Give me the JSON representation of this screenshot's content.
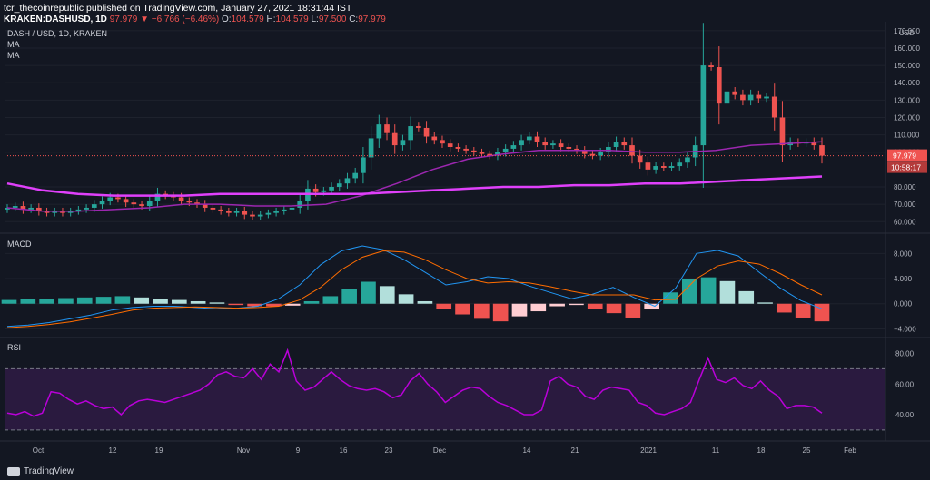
{
  "header": {
    "publisher_line": "tcr_thecoinrepublic published on TradingView.com, January 27, 2021 18:31:44 IST",
    "symbol": "KRAKEN:DASHUSD, 1D",
    "last": "97.979",
    "change": "−6.766 (−6.46%)",
    "o_label": "O:",
    "o": "104.579",
    "h_label": "H:",
    "h": "104.579",
    "l_label": "L:",
    "l": "97.500",
    "c_label": "C:",
    "c": "97.979"
  },
  "overlays": {
    "pair": "DASH / USD, 1D, KRAKEN",
    "ma1": "MA",
    "ma2": "MA",
    "macd": "MACD",
    "rsi": "RSI"
  },
  "price_axis": {
    "unit": "USD",
    "ticks": [
      "170.000",
      "160.000",
      "150.000",
      "140.000",
      "130.000",
      "120.000",
      "110.000",
      "100.000",
      "80.000",
      "70.000",
      "60.000"
    ],
    "current_price": "97.979",
    "countdown": "10:58:17"
  },
  "macd_axis": {
    "ticks": [
      "8.000",
      "4.000",
      "0.000",
      "−4.000"
    ]
  },
  "rsi_axis": {
    "ticks": [
      "80.00",
      "60.00",
      "40.00"
    ]
  },
  "time_axis": {
    "ticks": [
      "Oct",
      "12",
      "19",
      "Nov",
      "9",
      "16",
      "23",
      "Dec",
      "14",
      "21",
      "2021",
      "11",
      "18",
      "25",
      "Feb"
    ]
  },
  "footer": {
    "brand": "TradingView"
  },
  "colors": {
    "background": "#131722",
    "up": "#26a69a",
    "down": "#ef5350",
    "ma_short": "#9c27b0",
    "ma_long": "#e040fb",
    "macd_line": "#2196f3",
    "signal_line": "#ff6d00",
    "rsi_line": "#ba00d9",
    "rsi_band": "#2a1a3f"
  },
  "chart_data": [
    {
      "type": "candlestick",
      "title": "DASH / USD, 1D, KRAKEN",
      "ylabel": "USD",
      "ylim": [
        57,
        172
      ],
      "x_ticks": [
        "Oct",
        "12",
        "19",
        "Nov",
        "9",
        "16",
        "23",
        "Dec",
        "14",
        "21",
        "2021",
        "11",
        "18",
        "25",
        "Feb"
      ],
      "ohlc_close": [
        68,
        69,
        67,
        68,
        66,
        65,
        66,
        65,
        66,
        67,
        68,
        70,
        72,
        74,
        73,
        71,
        70,
        69,
        72,
        76,
        75,
        74,
        72,
        71,
        70,
        68,
        67,
        66,
        65,
        66,
        64,
        63,
        64,
        65,
        66,
        67,
        68,
        72,
        79,
        77,
        78,
        80,
        82,
        85,
        88,
        97,
        108,
        116,
        111,
        104,
        107,
        115,
        114,
        109,
        107,
        105,
        103,
        102,
        101,
        100,
        99,
        98,
        100,
        102,
        104,
        107,
        109,
        106,
        104,
        105,
        103,
        102,
        101,
        99,
        98,
        100,
        103,
        106,
        104,
        98,
        94,
        90,
        92,
        91,
        92,
        94,
        97,
        104,
        150,
        149,
        128,
        135,
        133,
        130,
        133,
        131,
        132,
        120,
        104,
        106,
        105,
        106,
        104,
        98
      ],
      "series": [
        {
          "name": "MA",
          "values": [
            68,
            66,
            66,
            67,
            68,
            70,
            70,
            69,
            69,
            70,
            75,
            82,
            90,
            96,
            99,
            101,
            101,
            101,
            100,
            100,
            101,
            104,
            105,
            106
          ]
        },
        {
          "name": "MA",
          "values": [
            82,
            78,
            76,
            75,
            75,
            75,
            76,
            76,
            76,
            76,
            76,
            77,
            78,
            79,
            80,
            80,
            81,
            81,
            82,
            82,
            83,
            84,
            85,
            86
          ]
        }
      ]
    },
    {
      "type": "bar",
      "title": "MACD",
      "ylim": [
        -4.8,
        10.5
      ],
      "histogram": [
        0.6,
        0.7,
        0.8,
        0.9,
        1.0,
        1.1,
        1.2,
        1.0,
        0.8,
        0.6,
        0.4,
        0.2,
        -0.2,
        -0.4,
        -0.4,
        -0.3,
        0.4,
        1.2,
        2.4,
        3.5,
        2.8,
        1.5,
        0.4,
        -0.8,
        -1.7,
        -2.4,
        -2.8,
        -2.0,
        -1.2,
        -0.4,
        -0.2,
        -0.9,
        -1.5,
        -2.2,
        -0.8,
        1.8,
        4.0,
        4.2,
        3.6,
        2.0,
        0.2,
        -1.4,
        -2.2,
        -2.8
      ],
      "series": [
        {
          "name": "MACD",
          "values": [
            -3.6,
            -3.4,
            -3.0,
            -2.4,
            -1.8,
            -1.0,
            -0.6,
            -0.4,
            -0.4,
            -0.6,
            -0.8,
            -0.7,
            -0.4,
            0.8,
            3.0,
            6.2,
            8.4,
            9.2,
            8.6,
            7.0,
            5.0,
            3.0,
            3.5,
            4.3,
            4.0,
            2.8,
            1.8,
            0.8,
            1.5,
            2.6,
            1.0,
            -0.4,
            2.5,
            8.0,
            8.5,
            7.6,
            5.0,
            2.5,
            0.5,
            -0.8
          ]
        },
        {
          "name": "Signal",
          "values": [
            -3.8,
            -3.6,
            -3.3,
            -2.9,
            -2.3,
            -1.7,
            -1.0,
            -0.7,
            -0.6,
            -0.5,
            -0.6,
            -0.7,
            -0.6,
            -0.4,
            0.6,
            2.6,
            5.4,
            7.4,
            8.4,
            8.2,
            7.0,
            5.4,
            4.0,
            3.3,
            3.5,
            3.3,
            2.7,
            2.0,
            1.4,
            1.4,
            1.4,
            0.6,
            0.7,
            4.0,
            6.0,
            6.8,
            6.3,
            4.8,
            3.0,
            1.4
          ]
        }
      ]
    },
    {
      "type": "line",
      "title": "RSI",
      "ylim": [
        24,
        88
      ],
      "series": [
        {
          "name": "RSI",
          "values": [
            41,
            40,
            42,
            39,
            41,
            55,
            54,
            50,
            47,
            49,
            46,
            44,
            45,
            40,
            46,
            49,
            50,
            49,
            48,
            50,
            52,
            54,
            56,
            60,
            66,
            68,
            65,
            64,
            70,
            63,
            73,
            68,
            82,
            62,
            56,
            58,
            63,
            68,
            63,
            59,
            57,
            56,
            57,
            55,
            51,
            53,
            62,
            67,
            60,
            55,
            48,
            52,
            56,
            58,
            57,
            52,
            48,
            46,
            43,
            40,
            40,
            43,
            62,
            65,
            60,
            58,
            52,
            50,
            56,
            58,
            57,
            56,
            48,
            46,
            41,
            40,
            42,
            44,
            48,
            63,
            77,
            63,
            61,
            64,
            59,
            57,
            62,
            56,
            52,
            44,
            46,
            46,
            45,
            41
          ]
        }
      ]
    }
  ]
}
